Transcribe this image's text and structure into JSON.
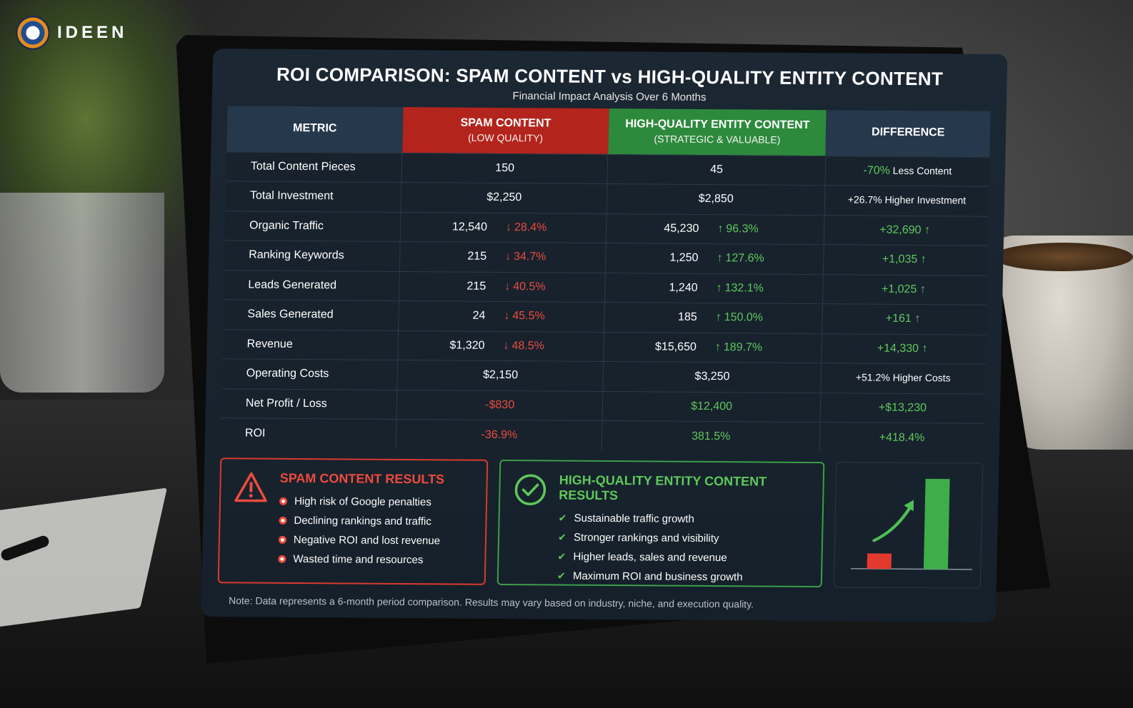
{
  "brand": {
    "name": "IDEEN"
  },
  "header": {
    "title": "ROI COMPARISON: SPAM CONTENT vs HIGH-QUALITY ENTITY CONTENT",
    "subtitle": "Financial Impact Analysis Over 6 Months"
  },
  "table": {
    "columns": {
      "metric": "METRIC",
      "spam": "SPAM CONTENT",
      "spam_sub": "(LOW QUALITY)",
      "hq": "HIGH-QUALITY ENTITY CONTENT",
      "hq_sub": "(STRATEGIC & VALUABLE)",
      "diff": "DIFFERENCE"
    },
    "rows": [
      {
        "metric": "Total Content Pieces",
        "spam": "150",
        "spam_change": "",
        "hq": "45",
        "hq_change": "",
        "diff_a": "-70%",
        "diff_b": " Less Content"
      },
      {
        "metric": "Total Investment",
        "spam": "$2,250",
        "spam_change": "",
        "hq": "$2,850",
        "hq_change": "",
        "diff_a": "",
        "diff_b": "+26.7% Higher Investment"
      },
      {
        "metric": "Organic Traffic",
        "spam": "12,540",
        "spam_change": "28.4%",
        "hq": "45,230",
        "hq_change": "96.3%",
        "diff_a": "+32,690",
        "diff_b": ""
      },
      {
        "metric": "Ranking Keywords",
        "spam": "215",
        "spam_change": "34.7%",
        "hq": "1,250",
        "hq_change": "127.6%",
        "diff_a": "+1,035",
        "diff_b": ""
      },
      {
        "metric": "Leads Generated",
        "spam": "215",
        "spam_change": "40.5%",
        "hq": "1,240",
        "hq_change": "132.1%",
        "diff_a": "+1,025",
        "diff_b": ""
      },
      {
        "metric": "Sales Generated",
        "spam": "24",
        "spam_change": "45.5%",
        "hq": "185",
        "hq_change": "150.0%",
        "diff_a": "+161",
        "diff_b": ""
      },
      {
        "metric": "Revenue",
        "spam": "$1,320",
        "spam_change": "48.5%",
        "hq": "$15,650",
        "hq_change": "189.7%",
        "diff_a": "+14,330",
        "diff_b": ""
      },
      {
        "metric": "Operating Costs",
        "spam": "$2,150",
        "spam_change": "",
        "hq": "$3,250",
        "hq_change": "",
        "diff_a": "",
        "diff_b": "+51.2% Higher Costs"
      },
      {
        "metric": "Net Profit / Loss",
        "spam": "-$830",
        "spam_change": "",
        "hq": "$12,400",
        "hq_change": "",
        "diff_a": "+$13,230",
        "diff_b": ""
      },
      {
        "metric": "ROI",
        "spam": "-36.9%",
        "spam_change": "",
        "hq": "381.5%",
        "hq_change": "",
        "diff_a": "+418.4%",
        "diff_b": ""
      }
    ]
  },
  "spam_results": {
    "title": "SPAM CONTENT RESULTS",
    "items": [
      "High risk of Google penalties",
      "Declining rankings and traffic",
      "Negative ROI and lost revenue",
      "Wasted time and resources"
    ]
  },
  "hq_results": {
    "title": "HIGH-QUALITY ENTITY CONTENT RESULTS",
    "items": [
      "Sustainable traffic growth",
      "Stronger rankings and visibility",
      "Higher leads, sales and revenue",
      "Maximum ROI and business growth"
    ]
  },
  "note": "Note: Data represents a 6-month period comparison. Results may vary based on industry, niche, and execution quality.",
  "colors": {
    "spam": "#b3241c",
    "hq": "#2d8a3c",
    "screen": "#17222d"
  },
  "mini_chart": {
    "spam_level": 0.17,
    "hq_level": 1.0
  }
}
